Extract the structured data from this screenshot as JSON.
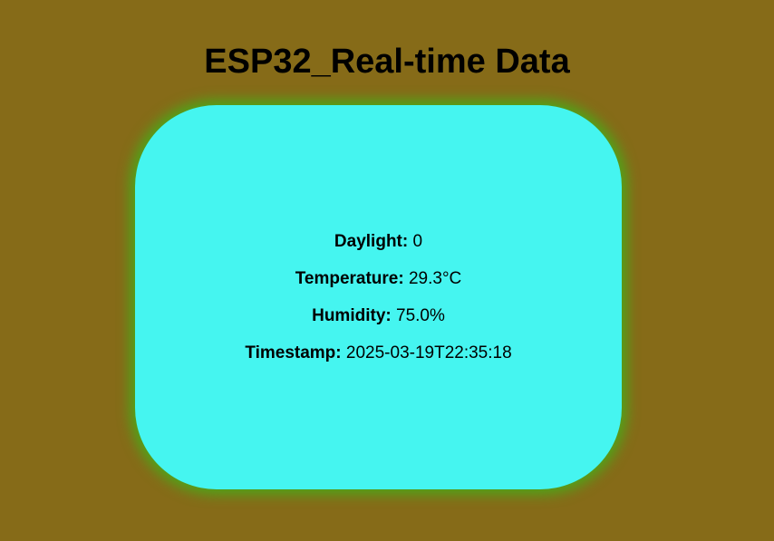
{
  "page": {
    "title": "ESP32_Real-time Data"
  },
  "colors": {
    "background": "#866b18",
    "card": "#45f5f0",
    "card_glow": "#4fa51a",
    "text": "#000000"
  },
  "readings": [
    {
      "label": "Daylight:",
      "value": "0"
    },
    {
      "label": "Temperature:",
      "value": "29.3°C"
    },
    {
      "label": "Humidity:",
      "value": "75.0%"
    },
    {
      "label": "Timestamp:",
      "value": "2025-03-19T22:35:18"
    }
  ]
}
